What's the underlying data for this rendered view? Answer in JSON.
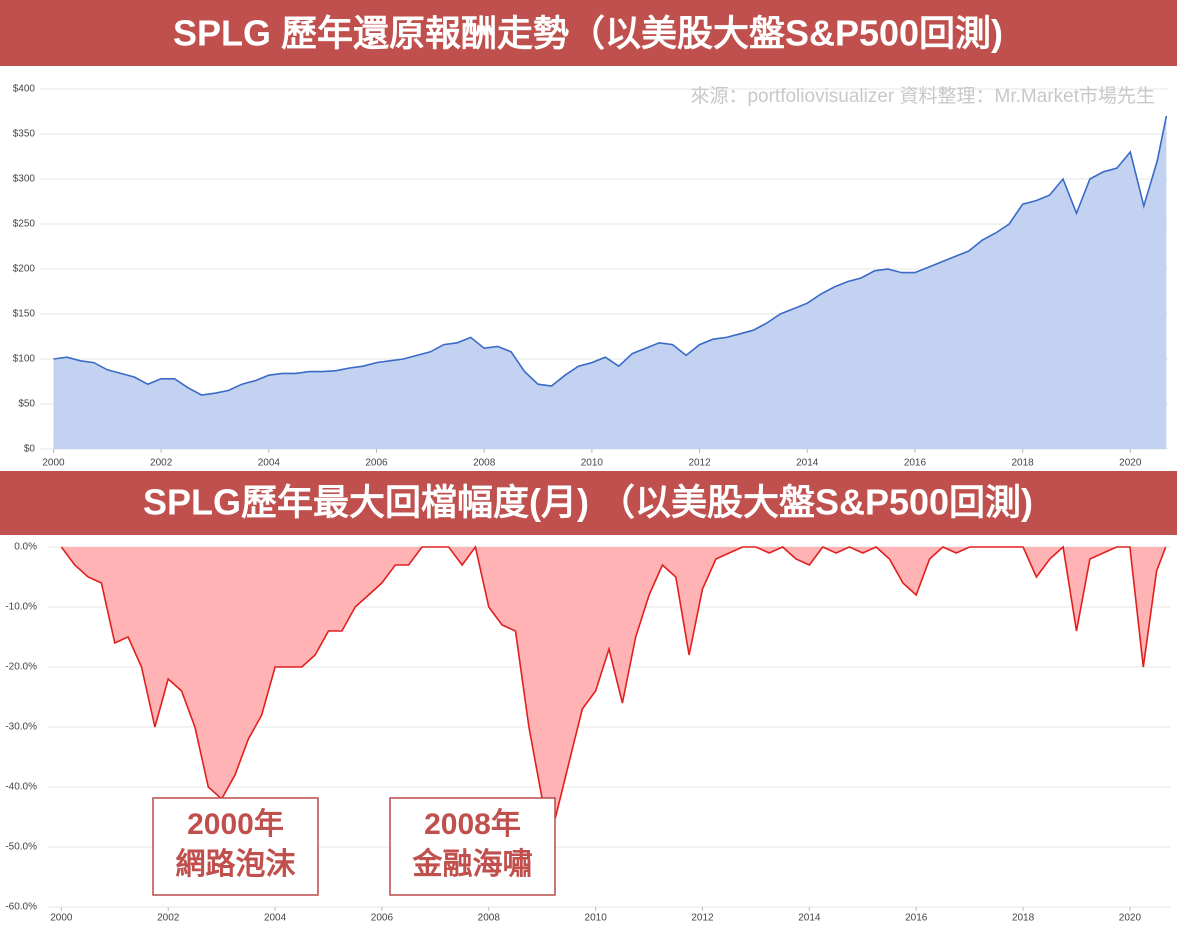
{
  "banner_titles": [
    "SPLG 歷年還原報酬走勢（以美股大盤S&P500回測)",
    "SPLG歷年最大回檔幅度(月) （以美股大盤S&P500回測)"
  ],
  "chart_data": [
    {
      "type": "area",
      "subtitle": "來源：portfoliovisualizer 資料整理：Mr.Market市場先生",
      "x": [
        2000,
        2000.25,
        2000.5,
        2000.75,
        2001,
        2001.25,
        2001.5,
        2001.75,
        2002,
        2002.25,
        2002.5,
        2002.75,
        2003,
        2003.25,
        2003.5,
        2003.75,
        2004,
        2004.25,
        2004.5,
        2004.75,
        2005,
        2005.25,
        2005.5,
        2005.75,
        2006,
        2006.25,
        2006.5,
        2006.75,
        2007,
        2007.25,
        2007.5,
        2007.75,
        2008,
        2008.25,
        2008.5,
        2008.75,
        2009,
        2009.25,
        2009.5,
        2009.75,
        2010,
        2010.25,
        2010.5,
        2010.75,
        2011,
        2011.25,
        2011.5,
        2011.75,
        2012,
        2012.25,
        2012.5,
        2012.75,
        2013,
        2013.25,
        2013.5,
        2013.75,
        2014,
        2014.25,
        2014.5,
        2014.75,
        2015,
        2015.25,
        2015.5,
        2015.75,
        2016,
        2016.25,
        2016.5,
        2016.75,
        2017,
        2017.25,
        2017.5,
        2017.75,
        2018,
        2018.25,
        2018.5,
        2018.75,
        2019,
        2019.25,
        2019.5,
        2019.75,
        2020,
        2020.25,
        2020.5,
        2020.67
      ],
      "series": [
        {
          "color": "#3a6bc7",
          "fill": "#c3d2f0",
          "values": [
            100,
            102,
            98,
            96,
            88,
            84,
            80,
            72,
            78,
            78,
            68,
            60,
            62,
            65,
            72,
            76,
            82,
            84,
            84,
            86,
            86,
            87,
            90,
            92,
            96,
            98,
            100,
            104,
            108,
            116,
            118,
            124,
            112,
            114,
            108,
            86,
            72,
            70,
            82,
            92,
            96,
            102,
            92,
            106,
            112,
            118,
            116,
            104,
            116,
            122,
            124,
            128,
            132,
            140,
            150,
            156,
            162,
            172,
            180,
            186,
            190,
            198,
            200,
            196,
            196,
            202,
            208,
            214,
            220,
            232,
            240,
            250,
            272,
            276,
            282,
            300,
            262,
            300,
            308,
            312,
            330,
            270,
            320,
            370
          ]
        }
      ],
      "xlim": [
        1999.75,
        2020.7
      ],
      "ylim": [
        0,
        400
      ],
      "xticks": [
        2000,
        2002,
        2004,
        2006,
        2008,
        2010,
        2012,
        2014,
        2016,
        2018,
        2020
      ],
      "yticks": [
        {
          "value": 0,
          "label": "$0"
        },
        {
          "value": 50,
          "label": "$50"
        },
        {
          "value": 100,
          "label": "$100"
        },
        {
          "value": 150,
          "label": "$150"
        },
        {
          "value": 200,
          "label": "$200"
        },
        {
          "value": 250,
          "label": "$250"
        },
        {
          "value": 300,
          "label": "$300"
        },
        {
          "value": 350,
          "label": "$350"
        },
        {
          "value": 400,
          "label": "$400"
        }
      ],
      "grid": true
    },
    {
      "type": "area",
      "annotations": [
        [
          "2000年",
          "網路泡沫"
        ],
        [
          "2008年",
          "金融海嘯"
        ]
      ],
      "x": [
        2000,
        2000.25,
        2000.5,
        2000.75,
        2001,
        2001.25,
        2001.5,
        2001.75,
        2002,
        2002.25,
        2002.5,
        2002.75,
        2003,
        2003.25,
        2003.5,
        2003.75,
        2004,
        2004.25,
        2004.5,
        2004.75,
        2005,
        2005.25,
        2005.5,
        2005.75,
        2006,
        2006.25,
        2006.5,
        2006.75,
        2007,
        2007.25,
        2007.5,
        2007.75,
        2008,
        2008.25,
        2008.5,
        2008.75,
        2009,
        2009.25,
        2009.5,
        2009.75,
        2010,
        2010.25,
        2010.5,
        2010.75,
        2011,
        2011.25,
        2011.5,
        2011.75,
        2012,
        2012.25,
        2012.5,
        2012.75,
        2013,
        2013.25,
        2013.5,
        2013.75,
        2014,
        2014.25,
        2014.5,
        2014.75,
        2015,
        2015.25,
        2015.5,
        2015.75,
        2016,
        2016.25,
        2016.5,
        2016.75,
        2017,
        2017.25,
        2017.5,
        2017.75,
        2018,
        2018.25,
        2018.5,
        2018.75,
        2019,
        2019.25,
        2019.5,
        2019.75,
        2020,
        2020.25,
        2020.5,
        2020.67
      ],
      "series": [
        {
          "color": "#e0201e",
          "fill": "#ffb3b5",
          "values": [
            0,
            -3,
            -5,
            -6,
            -16,
            -15,
            -20,
            -30,
            -22,
            -24,
            -30,
            -40,
            -42,
            -38,
            -32,
            -28,
            -20,
            -20,
            -20,
            -18,
            -14,
            -14,
            -10,
            -8,
            -6,
            -3,
            -3,
            0,
            0,
            0,
            -3,
            0,
            -10,
            -13,
            -14,
            -30,
            -42,
            -45,
            -36,
            -27,
            -24,
            -17,
            -26,
            -15,
            -8,
            -3,
            -5,
            -18,
            -7,
            -2,
            -1,
            0,
            0,
            -1,
            0,
            -2,
            -3,
            0,
            -1,
            0,
            -1,
            0,
            -2,
            -6,
            -8,
            -2,
            0,
            -1,
            0,
            0,
            0,
            0,
            0,
            -5,
            -2,
            0,
            -14,
            -2,
            -1,
            0,
            0,
            -20,
            -4,
            0
          ]
        }
      ],
      "xlim": [
        1999.75,
        2020.75
      ],
      "ylim": [
        -60,
        0
      ],
      "xticks": [
        2000,
        2002,
        2004,
        2006,
        2008,
        2010,
        2012,
        2014,
        2016,
        2018,
        2020
      ],
      "yticks": [
        {
          "value": 0,
          "label": "0.0%"
        },
        {
          "value": -10,
          "label": "-10.0%"
        },
        {
          "value": -20,
          "label": "-20.0%"
        },
        {
          "value": -30,
          "label": "-30.0%"
        },
        {
          "value": -40,
          "label": "-40.0%"
        },
        {
          "value": -50,
          "label": "-50.0%"
        },
        {
          "value": -60,
          "label": "-60.0%"
        }
      ],
      "grid": true
    }
  ]
}
